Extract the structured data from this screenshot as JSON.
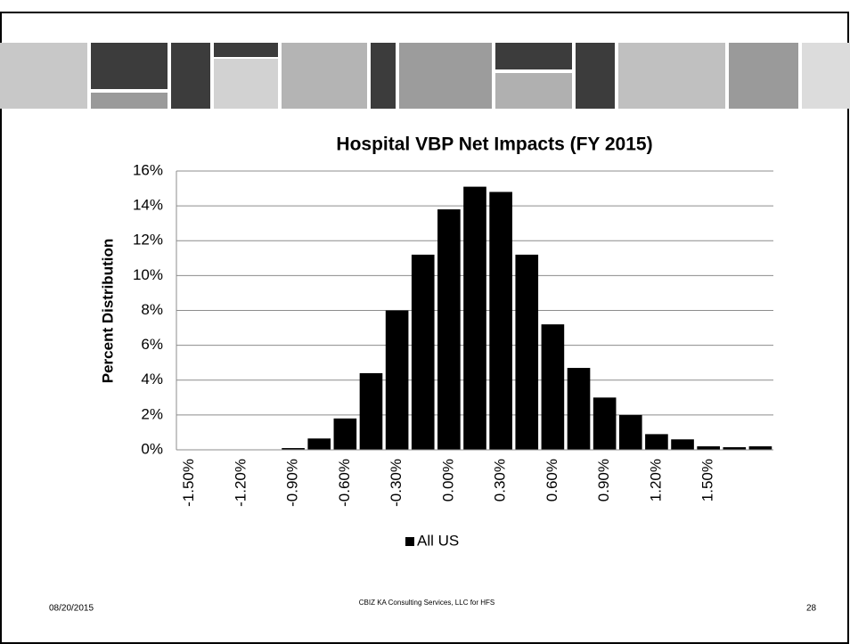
{
  "chart_data": {
    "type": "bar",
    "title": "Hospital VBP Net Impacts (FY 2015)",
    "y_label": "Percent Distribution",
    "categories": [
      "-1.50%",
      null,
      "-1.20%",
      null,
      "-0.90%",
      null,
      "-0.60%",
      null,
      "-0.30%",
      null,
      "0.00%",
      null,
      "0.30%",
      null,
      "0.60%",
      null,
      "0.90%",
      null,
      "1.20%",
      null,
      "1.50%",
      null,
      null
    ],
    "series": [
      {
        "name": "All US",
        "color": "#000000",
        "values": [
          0,
          0,
          0,
          0,
          0.1,
          0.65,
          1.8,
          4.4,
          8.0,
          11.2,
          13.8,
          15.1,
          14.8,
          11.2,
          7.2,
          4.7,
          3.0,
          2.0,
          0.9,
          0.6,
          0.2,
          0.15,
          0.2
        ]
      }
    ],
    "ylim": [
      0,
      16
    ],
    "yticks": [
      {
        "value": 0,
        "label": "0%"
      },
      {
        "value": 2,
        "label": "2%"
      },
      {
        "value": 4,
        "label": "4%"
      },
      {
        "value": 6,
        "label": "6%"
      },
      {
        "value": 8,
        "label": "8%"
      },
      {
        "value": 10,
        "label": "10%"
      },
      {
        "value": 12,
        "label": "12%"
      },
      {
        "value": 14,
        "label": "14%"
      },
      {
        "value": 16,
        "label": "16%"
      }
    ],
    "grid": true,
    "legend": "bottom"
  },
  "footer": {
    "date": "08/20/2015",
    "credit": "CBIZ KA Consulting Services, LLC for HFS",
    "page": "28"
  }
}
